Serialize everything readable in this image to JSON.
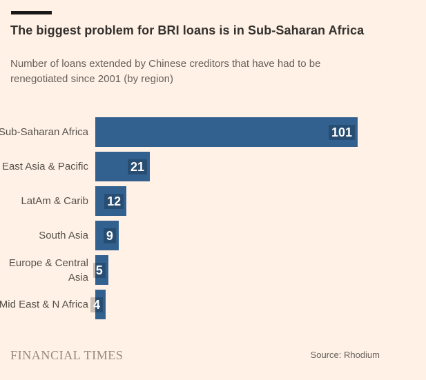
{
  "colors": {
    "background": "#fff1e5",
    "bar": "#33618f",
    "value_halo": "rgba(0,0,0,0.2)",
    "title_rule": "#1a1817",
    "title_text": "#33302e",
    "subtitle_text": "#66605b",
    "axis_label_text": "#555049",
    "brand_text": "#948a7d",
    "source_text": "#66605b"
  },
  "header": {
    "title": "The biggest problem for BRI loans is in Sub-Saharan Africa",
    "subtitle": "Number of loans extended by Chinese creditors that have had to be renegotiated since 2001 (by region)"
  },
  "chart_data": {
    "type": "bar",
    "orientation": "horizontal",
    "title": "The biggest problem for BRI loans is in Sub-Saharan Africa",
    "subtitle": "Number of loans extended by Chinese creditors that have had to be renegotiated since 2001 (by region)",
    "categories": [
      "Sub-Saharan Africa",
      "East Asia & Pacific",
      "LatAm & Carib",
      "South Asia",
      "Europe & Central Asia",
      "Mid East & N Africa"
    ],
    "label_lines": [
      [
        "Sub-Saharan Africa"
      ],
      [
        "East Asia & Pacific"
      ],
      [
        "LatAm & Carib"
      ],
      [
        "South Asia"
      ],
      [
        "Europe & Central",
        "Asia"
      ],
      [
        "Mid East & N Africa"
      ]
    ],
    "values": [
      101,
      21,
      12,
      9,
      5,
      4
    ],
    "xlim": [
      0,
      101
    ],
    "grid": "off",
    "legend": "none",
    "bar_color": "#33618f",
    "value_label_position": "inside-end",
    "value_label_color": "#fdfdfd"
  },
  "footer": {
    "brand": "FINANCIAL TIMES",
    "source": "Source: Rhodium"
  }
}
